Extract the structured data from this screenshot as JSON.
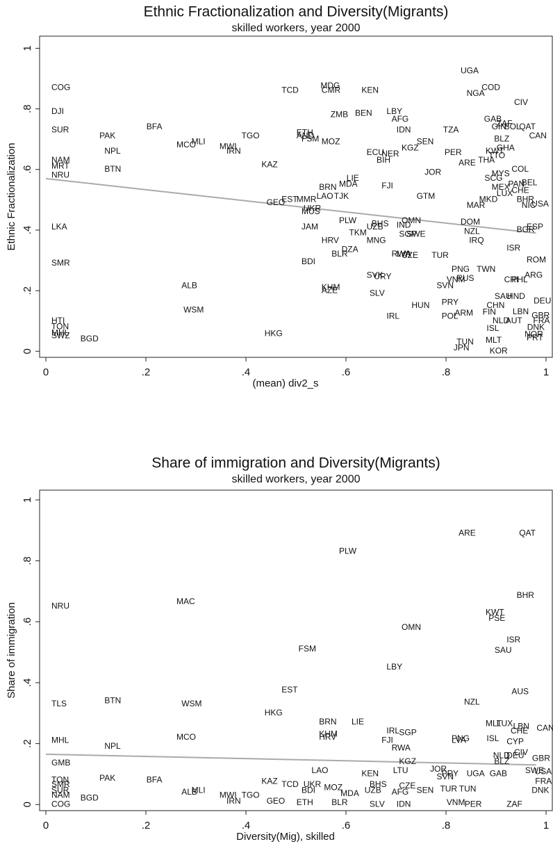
{
  "chart_data": [
    {
      "type": "scatter",
      "title": "Ethnic Fractionalization and Diversity(Migrants)",
      "subtitle": "skilled workers, year 2000",
      "x_label": "(mean) div2_s",
      "y_label": "Ethnic Fractionalization",
      "xlim": [
        -0.0125,
        1.0125
      ],
      "ylim": [
        -0.02,
        1.04
      ],
      "xticks": [
        0,
        {
          "value": 0.2,
          "label": ".2"
        },
        {
          "value": 0.4,
          "label": ".4"
        },
        {
          "value": 0.6,
          "label": ".6"
        },
        {
          "value": 0.8,
          "label": ".8"
        },
        1
      ],
      "yticks": [
        0,
        {
          "value": 0.2,
          "label": ".2"
        },
        {
          "value": 0.4,
          "label": ".4"
        },
        {
          "value": 0.6,
          "label": ".6"
        },
        {
          "value": 0.8,
          "label": ".8"
        },
        1
      ],
      "labels": [
        "COG",
        "DJI",
        "SUR",
        "NAM",
        "MRT",
        "NRU",
        "LKA",
        "SMR",
        "HTI",
        "TON",
        "MHL",
        "SWZ",
        "BGD",
        "PAK",
        "NPL",
        "BTN",
        "BFA",
        "MCO",
        "MLI",
        "MWI",
        "IRN",
        "TGO",
        "KAZ",
        "ALB",
        "WSM",
        "HKG",
        "GEO",
        "EST",
        "MMR",
        "TCD",
        "ETH",
        "AND",
        "FSM",
        "MOZ",
        "MDG",
        "CMR",
        "KEN",
        "ZMB",
        "BEN",
        "LBY",
        "AFG",
        "IDN",
        "SEN",
        "KGZ",
        "ECU",
        "NER",
        "BIH",
        "LAO",
        "TJK",
        "BRN",
        "MDA",
        "LIE",
        "UKR",
        "MUS",
        "FJI",
        "GTM",
        "JAM",
        "PLW",
        "BHS",
        "UZB",
        "OMN",
        "IND",
        "SGP",
        "SWE",
        "TKM",
        "HRV",
        "MNG",
        "DZA",
        "BLR",
        "BDI",
        "RWA",
        "LVA",
        "CZE",
        "TUR",
        "SVK",
        "URY",
        "KHM",
        "AZE",
        "SLV",
        "IRL",
        "HUN",
        "PRY",
        "POL",
        "ARM",
        "PNG",
        "RUS",
        "VNM",
        "SVN",
        "TWN",
        "TUN",
        "JPN",
        "MLT",
        "KOR",
        "UGA",
        "COD",
        "NGA",
        "CIV",
        "GAB",
        "ZAF",
        "GIN",
        "BOL",
        "QAT",
        "CAN",
        "TZA",
        "BLZ",
        "GHA",
        "KWT",
        "TTO",
        "THA",
        "PER",
        "ARE",
        "JOR",
        "COL",
        "MYS",
        "SCG",
        "PAN",
        "BEL",
        "MEX",
        "LUX",
        "CHE",
        "BHR",
        "MKD",
        "MAR",
        "NIC",
        "USA",
        "ESP",
        "BGR",
        "DOM",
        "NZL",
        "IRQ",
        "ISR",
        "ROM",
        "ARG",
        "CRI",
        "PHL",
        "SAU",
        "HND",
        "DEU",
        "CHN",
        "FIN",
        "LBN",
        "NLD",
        "AUT",
        "GBR",
        "FRA",
        "ISL",
        "DNK",
        "NOR",
        "PRT"
      ],
      "x": [
        0,
        0,
        0,
        0,
        0,
        0,
        0,
        0,
        0,
        0,
        0,
        0,
        0.058,
        0.096,
        0.106,
        0.106,
        0.19,
        0.25,
        0.28,
        0.336,
        0.35,
        0.38,
        0.42,
        0.26,
        0.264,
        0.426,
        0.43,
        0.46,
        0.49,
        0.46,
        0.49,
        0.49,
        0.5,
        0.54,
        0.538,
        0.54,
        0.62,
        0.558,
        0.607,
        0.67,
        0.68,
        0.69,
        0.73,
        0.7,
        0.63,
        0.66,
        0.65,
        0.53,
        0.565,
        0.535,
        0.575,
        0.59,
        0.504,
        0.5,
        0.66,
        0.73,
        0.5,
        0.575,
        0.64,
        0.63,
        0.7,
        0.69,
        0.695,
        0.71,
        0.595,
        0.54,
        0.63,
        0.58,
        0.56,
        0.5,
        0.68,
        0.69,
        0.7,
        0.76,
        0.63,
        0.645,
        0.54,
        0.54,
        0.636,
        0.67,
        0.72,
        0.78,
        0.78,
        0.806,
        0.8,
        0.81,
        0.79,
        0.77,
        0.85,
        0.81,
        0.804,
        0.868,
        0.876,
        0.818,
        0.86,
        0.83,
        0.925,
        0.865,
        0.89,
        0.88,
        0.905,
        0.935,
        0.955,
        0.783,
        0.885,
        0.89,
        0.868,
        0.874,
        0.853,
        0.786,
        0.814,
        0.746,
        0.92,
        0.88,
        0.866,
        0.913,
        0.94,
        0.88,
        0.89,
        0.92,
        0.93,
        0.855,
        0.83,
        0.94,
        0.96,
        0.95,
        0.93,
        0.818,
        0.825,
        0.835,
        0.91,
        0.95,
        0.946,
        0.905,
        0.92,
        0.886,
        0.911,
        0.964,
        0.87,
        0.862,
        0.922,
        0.882,
        0.908,
        0.96,
        0.963,
        0.87,
        0.951,
        0.946,
        0.95
      ],
      "y": [
        0.87,
        0.79,
        0.73,
        0.63,
        0.61,
        0.58,
        0.41,
        0.29,
        0.1,
        0.08,
        0.06,
        0.05,
        0.04,
        0.71,
        0.66,
        0.6,
        0.74,
        0.68,
        0.69,
        0.675,
        0.66,
        0.71,
        0.615,
        0.215,
        0.135,
        0.057,
        0.49,
        0.5,
        0.5,
        0.86,
        0.72,
        0.71,
        0.7,
        0.69,
        0.875,
        0.86,
        0.86,
        0.78,
        0.785,
        0.79,
        0.765,
        0.73,
        0.69,
        0.67,
        0.655,
        0.65,
        0.63,
        0.51,
        0.51,
        0.54,
        0.55,
        0.57,
        0.47,
        0.46,
        0.545,
        0.51,
        0.41,
        0.43,
        0.42,
        0.41,
        0.43,
        0.415,
        0.385,
        0.385,
        0.39,
        0.365,
        0.365,
        0.335,
        0.32,
        0.295,
        0.32,
        0.32,
        0.315,
        0.315,
        0.25,
        0.245,
        0.21,
        0.2,
        0.19,
        0.115,
        0.15,
        0.16,
        0.115,
        0.125,
        0.27,
        0.24,
        0.235,
        0.215,
        0.27,
        0.03,
        0.01,
        0.035,
        0,
        0.925,
        0.87,
        0.85,
        0.82,
        0.765,
        0.75,
        0.74,
        0.74,
        0.74,
        0.71,
        0.73,
        0.7,
        0.67,
        0.66,
        0.645,
        0.63,
        0.655,
        0.62,
        0.59,
        0.6,
        0.585,
        0.57,
        0.55,
        0.555,
        0.54,
        0.52,
        0.53,
        0.5,
        0.5,
        0.48,
        0.48,
        0.485,
        0.41,
        0.4,
        0.425,
        0.395,
        0.365,
        0.34,
        0.3,
        0.25,
        0.235,
        0.235,
        0.18,
        0.18,
        0.165,
        0.15,
        0.128,
        0.13,
        0.1,
        0.1,
        0.117,
        0.1,
        0.075,
        0.078,
        0.055,
        0.043
      ],
      "fit": {
        "x": [
          0,
          0.98
        ],
        "y": [
          0.57,
          0.39
        ],
        "color": "#aaaaaa"
      }
    },
    {
      "type": "scatter",
      "title": "Share of immigration and Diversity(Migrants)",
      "subtitle": "skilled workers, year 2000",
      "x_label": "Diversity(Mig), skilled",
      "y_label": "Share of immigration",
      "xlim": [
        -0.0125,
        1.0125
      ],
      "ylim": [
        -0.02,
        1.032
      ],
      "xticks": [
        0,
        {
          "value": 0.2,
          "label": ".2"
        },
        {
          "value": 0.4,
          "label": ".4"
        },
        {
          "value": 0.6,
          "label": ".6"
        },
        {
          "value": 0.8,
          "label": ".8"
        },
        1
      ],
      "yticks": [
        0,
        {
          "value": 0.2,
          "label": ".2"
        },
        {
          "value": 0.4,
          "label": ".4"
        },
        {
          "value": 0.6,
          "label": ".6"
        },
        {
          "value": 0.8,
          "label": ".8"
        },
        1
      ],
      "labels": [
        "NRU",
        "TLS",
        "MHL",
        "GMB",
        "TON",
        "SMR",
        "SUR",
        "NAM",
        "COG",
        "BTN",
        "NPL",
        "PAK",
        "BGD",
        "BFA",
        "MAC",
        "WSM",
        "MCO",
        "ALB",
        "MLI",
        "MWI",
        "IRN",
        "TGO",
        "KAZ",
        "GEO",
        "HKG",
        "EST",
        "FSM",
        "PLW",
        "BRN",
        "KHM",
        "HRV",
        "LIE",
        "LAO",
        "TCD",
        "UKR",
        "BDI",
        "ETH",
        "MOZ",
        "MDA",
        "BLR",
        "KEN",
        "BHS",
        "UZB",
        "SLV",
        "IRL",
        "SGP",
        "FJI",
        "RWA",
        "KGZ",
        "LTU",
        "AFG",
        "CZE",
        "SEN",
        "IDN",
        "LBY",
        "OMN",
        "ARE",
        "QAT",
        "BHR",
        "KWT",
        "PSE",
        "ISR",
        "SAU",
        "AUS",
        "NZL",
        "MLT",
        "LUX",
        "LBN",
        "CAN",
        "CHE",
        "PNG",
        "LVA",
        "ISL",
        "CYP",
        "CIV",
        "NLD",
        "DEU",
        "GBR",
        "BLZ",
        "JOR",
        "UGA",
        "GAB",
        "SVN",
        "PRY",
        "SWE",
        "USA",
        "TUN",
        "TUR",
        "PER",
        "VNM",
        "ZAF",
        "FRA",
        "DNK"
      ],
      "x": [
        0,
        0,
        0,
        0,
        0,
        0,
        0,
        0,
        0,
        0.106,
        0.106,
        0.096,
        0.058,
        0.19,
        0.25,
        0.26,
        0.25,
        0.26,
        0.28,
        0.336,
        0.35,
        0.38,
        0.42,
        0.43,
        0.426,
        0.46,
        0.494,
        0.575,
        0.535,
        0.535,
        0.535,
        0.6,
        0.52,
        0.46,
        0.504,
        0.5,
        0.49,
        0.545,
        0.578,
        0.56,
        0.62,
        0.636,
        0.626,
        0.636,
        0.67,
        0.695,
        0.66,
        0.68,
        0.695,
        0.683,
        0.68,
        0.695,
        0.73,
        0.69,
        0.67,
        0.7,
        0.814,
        0.935,
        0.93,
        0.868,
        0.874,
        0.91,
        0.886,
        0.92,
        0.825,
        0.868,
        0.89,
        0.923,
        0.97,
        0.918,
        0.8,
        0.8,
        0.87,
        0.91,
        0.925,
        0.883,
        0.91,
        0.961,
        0.885,
        0.757,
        0.83,
        0.876,
        0.77,
        0.78,
        0.947,
        0.966,
        0.815,
        0.777,
        0.826,
        0.79,
        0.91,
        0.967,
        0.96
      ],
      "y": [
        0.65,
        0.33,
        0.21,
        0.135,
        0.08,
        0.065,
        0.045,
        0.03,
        0,
        0.34,
        0.19,
        0.085,
        0.02,
        0.08,
        0.665,
        0.33,
        0.22,
        0.04,
        0.045,
        0.03,
        0.01,
        0.03,
        0.075,
        0.01,
        0.3,
        0.375,
        0.51,
        0.83,
        0.27,
        0.23,
        0.22,
        0.27,
        0.11,
        0.065,
        0.065,
        0.045,
        0.005,
        0.055,
        0.035,
        0.005,
        0.1,
        0.065,
        0.045,
        0,
        0.24,
        0.235,
        0.21,
        0.185,
        0.14,
        0.11,
        0.04,
        0.06,
        0.045,
        0,
        0.45,
        0.58,
        0.89,
        0.89,
        0.685,
        0.63,
        0.61,
        0.54,
        0.505,
        0.37,
        0.335,
        0.265,
        0.265,
        0.255,
        0.25,
        0.24,
        0.215,
        0.21,
        0.215,
        0.205,
        0.17,
        0.16,
        0.16,
        0.15,
        0.14,
        0.115,
        0.1,
        0.1,
        0.09,
        0.1,
        0.11,
        0.107,
        0.05,
        0.05,
        0,
        0.005,
        0,
        0.075,
        0.045
      ],
      "fit": {
        "x": [
          0,
          0.98
        ],
        "y": [
          0.165,
          0.13
        ],
        "color": "#aaaaaa"
      }
    }
  ]
}
